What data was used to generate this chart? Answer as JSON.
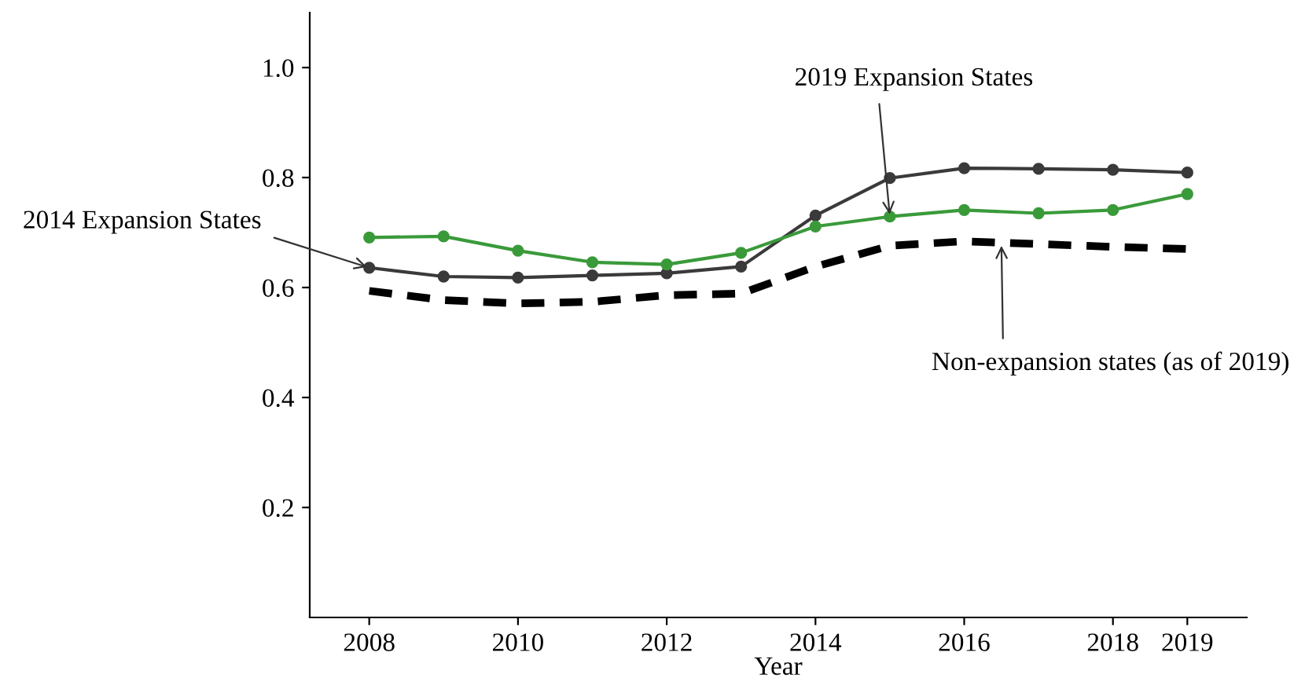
{
  "chart_data": {
    "type": "line",
    "xlabel": "Year",
    "x": [
      2008,
      2009,
      2010,
      2011,
      2012,
      2013,
      2014,
      2015,
      2016,
      2017,
      2018,
      2019
    ],
    "series": [
      {
        "color": "#3a3a3a",
        "marker": "circle",
        "line_style": "solid",
        "values": [
          0.636,
          0.62,
          0.618,
          0.622,
          0.626,
          0.638,
          0.731,
          0.799,
          0.817,
          0.816,
          0.814,
          0.809
        ]
      },
      {
        "color": "#3a9a3a",
        "marker": "circle",
        "line_style": "solid",
        "values": [
          0.691,
          0.693,
          0.667,
          0.646,
          0.642,
          0.663,
          0.711,
          0.729,
          0.741,
          0.735,
          0.741,
          0.77
        ]
      },
      {
        "color": "#000000",
        "marker": "none",
        "line_style": "dashed",
        "values": [
          0.594,
          0.577,
          0.571,
          0.574,
          0.586,
          0.589,
          0.638,
          0.676,
          0.684,
          0.679,
          0.674,
          0.67
        ]
      }
    ],
    "xlim": [
      2007.2,
      2019.8
    ],
    "xticks": [
      2008,
      2010,
      2012,
      2014,
      2016,
      2018,
      2019
    ],
    "ylim": [
      0,
      1.1
    ],
    "yticks": [
      0.2,
      0.4,
      0.6,
      0.8,
      {
        "value": 1.0,
        "label": "1.0"
      }
    ],
    "grid": false,
    "legend": false,
    "annotations": [
      {
        "text": "2014 Expansion States",
        "x": 2008,
        "y": 0.636
      },
      {
        "text": "2019 Expansion States",
        "x": 2015,
        "y": 0.729
      },
      {
        "text": "Non-expansion states (as of 2019)",
        "x": 2016.5,
        "y": 0.68
      }
    ]
  }
}
